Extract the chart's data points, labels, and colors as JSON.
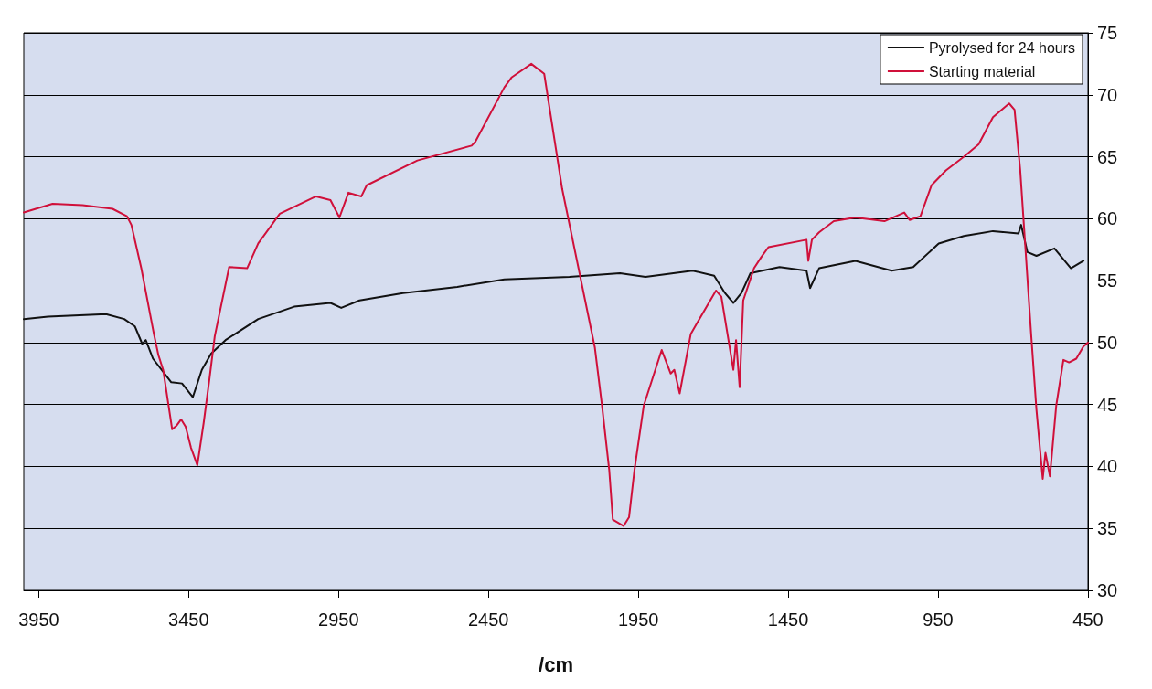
{
  "chart_data": {
    "type": "line",
    "xlabel": "/cm",
    "xlim": [
      4000,
      450
    ],
    "xticks": [
      3950,
      3450,
      2950,
      2450,
      1950,
      1450,
      950,
      450
    ],
    "ylim": [
      30,
      75
    ],
    "yticks": [
      30,
      35,
      40,
      45,
      50,
      55,
      60,
      65,
      70,
      75
    ],
    "grid": "y",
    "legend": "top right",
    "marker": "none",
    "line_style": "solid",
    "series": [
      {
        "name": "Pyrolysed for 24 hours",
        "color": "#111111",
        "x": [
          4000,
          3919,
          3726,
          3665,
          3629,
          3605,
          3593,
          3569,
          3508,
          3472,
          3436,
          3406,
          3375,
          3327,
          3218,
          3098,
          2977,
          2941,
          2880,
          2735,
          2554,
          2397,
          2180,
          2011,
          1926,
          1769,
          1697,
          1661,
          1633,
          1606,
          1576,
          1479,
          1389,
          1377,
          1347,
          1226,
          1105,
          1033,
          948,
          864,
          767,
          682,
          673,
          652,
          622,
          562,
          507,
          465
        ],
        "values": [
          51.9,
          52.1,
          52.3,
          51.9,
          51.3,
          49.9,
          50.2,
          48.7,
          46.8,
          46.7,
          45.6,
          47.8,
          49.1,
          50.2,
          51.9,
          52.9,
          53.2,
          52.8,
          53.4,
          54.0,
          54.5,
          55.1,
          55.3,
          55.6,
          55.3,
          55.8,
          55.4,
          54.0,
          53.2,
          54.0,
          55.6,
          56.1,
          55.8,
          54.4,
          56.0,
          56.6,
          55.8,
          56.1,
          58.0,
          58.6,
          59.0,
          58.8,
          59.5,
          57.3,
          57.0,
          57.6,
          56.0,
          56.6
        ]
      },
      {
        "name": "Starting material",
        "color": "#d0103a",
        "x": [
          4000,
          3904,
          3804,
          3704,
          3656,
          3641,
          3608,
          3566,
          3551,
          3535,
          3505,
          3490,
          3475,
          3460,
          3442,
          3421,
          3400,
          3381,
          3363,
          3315,
          3255,
          3218,
          3146,
          3025,
          2977,
          2947,
          2917,
          2874,
          2856,
          2687,
          2506,
          2494,
          2397,
          2373,
          2307,
          2264,
          2204,
          2095,
          2071,
          2047,
          2035,
          1999,
          1981,
          1963,
          1932,
          1872,
          1842,
          1830,
          1812,
          1775,
          1691,
          1673,
          1633,
          1624,
          1612,
          1600,
          1564,
          1540,
          1516,
          1389,
          1383,
          1371,
          1347,
          1298,
          1226,
          1129,
          1063,
          1045,
          1009,
          972,
          924,
          864,
          815,
          767,
          713,
          695,
          676,
          640,
          622,
          601,
          592,
          577,
          556,
          532,
          513,
          489,
          465,
          450
        ],
        "values": [
          60.5,
          61.2,
          61.1,
          60.8,
          60.2,
          59.5,
          56.0,
          50.7,
          49.0,
          47.8,
          43.0,
          43.3,
          43.8,
          43.2,
          41.5,
          40.1,
          43.5,
          47.0,
          50.5,
          56.1,
          56.0,
          58.0,
          60.4,
          61.8,
          61.5,
          60.1,
          62.1,
          61.8,
          62.7,
          64.7,
          65.9,
          66.2,
          70.6,
          71.4,
          72.5,
          71.7,
          62.4,
          49.6,
          44.9,
          39.7,
          35.7,
          35.2,
          35.9,
          39.7,
          44.9,
          49.4,
          47.5,
          47.8,
          45.9,
          50.7,
          54.2,
          53.7,
          47.8,
          50.2,
          46.4,
          53.4,
          56.0,
          56.9,
          57.7,
          58.3,
          56.6,
          58.3,
          58.9,
          59.8,
          60.1,
          59.8,
          60.5,
          59.9,
          60.2,
          62.7,
          63.9,
          65.0,
          66.0,
          68.2,
          69.3,
          68.8,
          63.9,
          50.8,
          44.6,
          39.0,
          41.1,
          39.2,
          44.9,
          48.6,
          48.4,
          48.7,
          49.7,
          50.0
        ]
      }
    ]
  }
}
